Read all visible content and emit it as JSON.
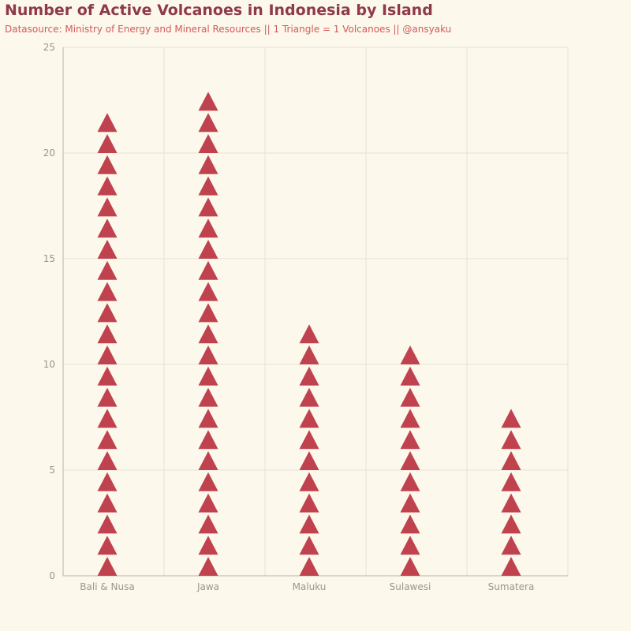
{
  "chart_data": {
    "type": "bar",
    "title": "Number of Active Volcanoes in Indonesia by Island",
    "subtitle": "Datasource: Ministry of Energy and Mineral Resources || 1 Triangle = 1 Volcanoes || @ansyaku",
    "categories": [
      "Bali & Nusa",
      "Jawa",
      "Maluku",
      "Sulawesi",
      "Sumatera"
    ],
    "values": [
      22,
      23,
      12,
      11,
      8
    ],
    "ylim": [
      0,
      25
    ],
    "yticks": [
      0,
      5,
      10,
      15,
      20,
      25
    ],
    "xlabel": "",
    "ylabel": "",
    "grid": true,
    "marker": "triangle",
    "colors": {
      "marker": "#c0424f",
      "title": "#8f3a49",
      "subtitle": "#d45a5a",
      "background": "#fcf8eb"
    }
  }
}
